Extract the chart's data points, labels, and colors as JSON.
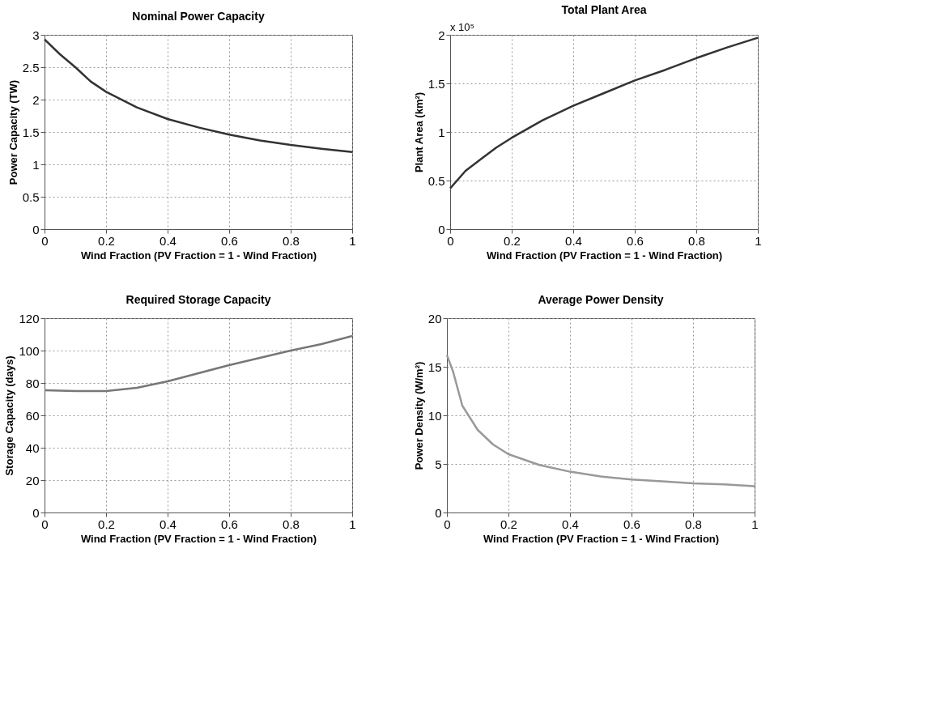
{
  "chart_data": [
    {
      "type": "line",
      "title": "Nominal Power Capacity",
      "xlabel": "Wind Fraction (PV Fraction = 1 - Wind Fraction)",
      "ylabel": "Power Capacity (TW)",
      "x": [
        0,
        0.05,
        0.1,
        0.15,
        0.2,
        0.3,
        0.4,
        0.5,
        0.6,
        0.7,
        0.8,
        0.9,
        1
      ],
      "series": [
        {
          "color": "#333333",
          "values": [
            2.93,
            2.7,
            2.5,
            2.28,
            2.12,
            1.88,
            1.7,
            1.57,
            1.46,
            1.37,
            1.3,
            1.24,
            1.19
          ]
        }
      ],
      "xlim": [
        0,
        1
      ],
      "xticks": [
        0,
        0.2,
        0.4,
        0.6,
        0.8,
        1
      ],
      "ylim": [
        0,
        3
      ],
      "yticks": [
        0,
        0.5,
        1,
        1.5,
        2,
        2.5,
        3
      ],
      "grid": true,
      "line_style": "solid"
    },
    {
      "type": "line",
      "title": "Total Plant Area",
      "xlabel": "Wind Fraction (PV Fraction = 1 - Wind Fraction)",
      "ylabel": "Plant Area (km²)",
      "annotations": [
        "x 10⁵"
      ],
      "x": [
        0,
        0.05,
        0.1,
        0.15,
        0.2,
        0.3,
        0.4,
        0.5,
        0.6,
        0.7,
        0.8,
        0.9,
        1
      ],
      "series": [
        {
          "color": "#333333",
          "values": [
            0.42,
            0.6,
            0.72,
            0.84,
            0.94,
            1.12,
            1.27,
            1.4,
            1.53,
            1.64,
            1.76,
            1.87,
            1.97
          ]
        }
      ],
      "xlim": [
        0,
        1
      ],
      "xticks": [
        0,
        0.2,
        0.4,
        0.6,
        0.8,
        1
      ],
      "ylim": [
        0,
        2
      ],
      "yticks": [
        0,
        0.5,
        1,
        1.5,
        2
      ],
      "grid": true,
      "line_style": "solid"
    },
    {
      "type": "line",
      "title": "Required Storage Capacity",
      "xlabel": "Wind Fraction (PV Fraction = 1 - Wind Fraction)",
      "ylabel": "Storage Capacity (days)",
      "x": [
        0,
        0.1,
        0.2,
        0.3,
        0.4,
        0.5,
        0.6,
        0.7,
        0.8,
        0.9,
        1
      ],
      "series": [
        {
          "color": "#777777",
          "values": [
            75.5,
            75,
            75,
            77,
            81,
            86,
            91,
            95.5,
            100,
            104,
            109
          ]
        }
      ],
      "xlim": [
        0,
        1
      ],
      "xticks": [
        0,
        0.2,
        0.4,
        0.6,
        0.8,
        1
      ],
      "ylim": [
        0,
        120
      ],
      "yticks": [
        0,
        20,
        40,
        60,
        80,
        100,
        120
      ],
      "grid": true,
      "line_style": "solid"
    },
    {
      "type": "line",
      "title": "Average Power Density",
      "xlabel": "Wind Fraction (PV Fraction = 1 - Wind Fraction)",
      "ylabel": "Power Density (W/m²)",
      "x": [
        0,
        0.02,
        0.05,
        0.1,
        0.15,
        0.2,
        0.3,
        0.4,
        0.5,
        0.6,
        0.7,
        0.8,
        0.9,
        1
      ],
      "series": [
        {
          "color": "#999999",
          "values": [
            16.2,
            14.5,
            11,
            8.5,
            7,
            6,
            4.9,
            4.2,
            3.7,
            3.4,
            3.2,
            3.0,
            2.9,
            2.7
          ]
        }
      ],
      "xlim": [
        0,
        1
      ],
      "xticks": [
        0,
        0.2,
        0.4,
        0.6,
        0.8,
        1
      ],
      "ylim": [
        0,
        20
      ],
      "yticks": [
        0,
        5,
        10,
        15,
        20
      ],
      "grid": true,
      "line_style": "solid"
    }
  ]
}
